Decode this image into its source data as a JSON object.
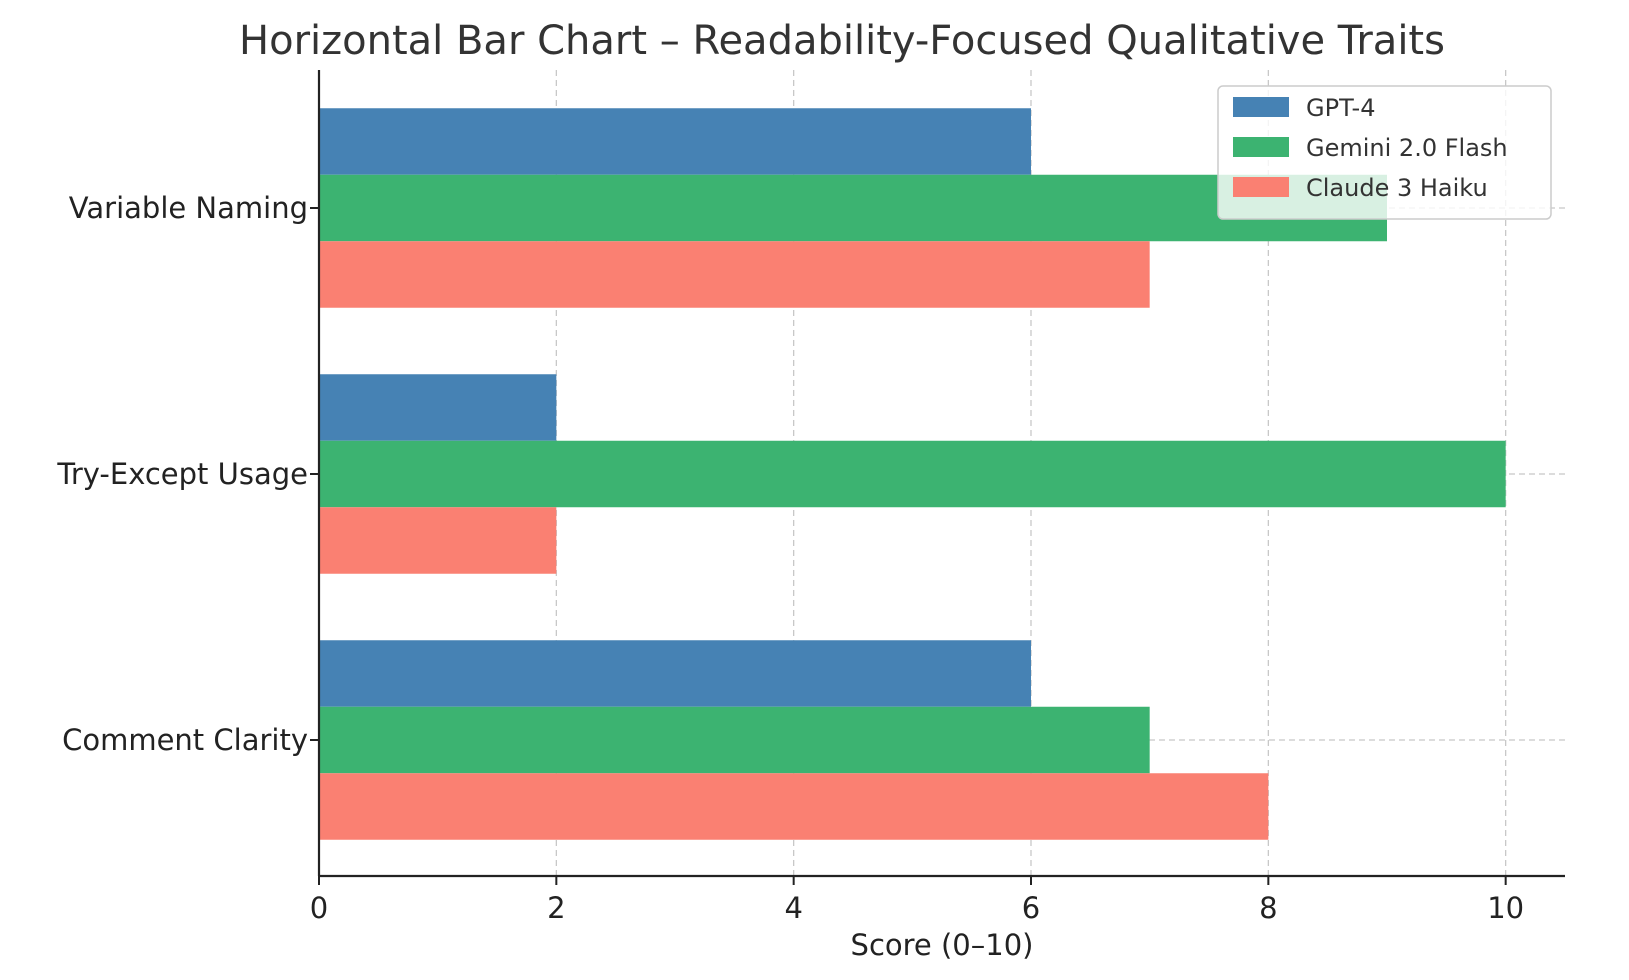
{
  "chart_data": {
    "type": "bar",
    "orientation": "horizontal",
    "title": "Horizontal Bar Chart – Readability-Focused Qualitative Traits",
    "xlabel": "Score (0–10)",
    "ylabel": "",
    "categories": [
      "Variable Naming",
      "Try-Except Usage",
      "Comment Clarity"
    ],
    "series": [
      {
        "name": "GPT-4",
        "color": "#4682b4",
        "values": [
          6,
          2,
          6
        ]
      },
      {
        "name": "Gemini 2.0 Flash",
        "color": "#3cb371",
        "values": [
          9,
          10,
          7
        ]
      },
      {
        "name": "Claude 3 Haiku",
        "color": "#fa8072",
        "values": [
          7,
          2,
          8
        ]
      }
    ],
    "xlim": [
      0,
      10.5
    ],
    "xticks": [
      "0",
      "2",
      "4",
      "6",
      "8",
      "10"
    ],
    "grid": true,
    "legend_position": "top-right"
  }
}
